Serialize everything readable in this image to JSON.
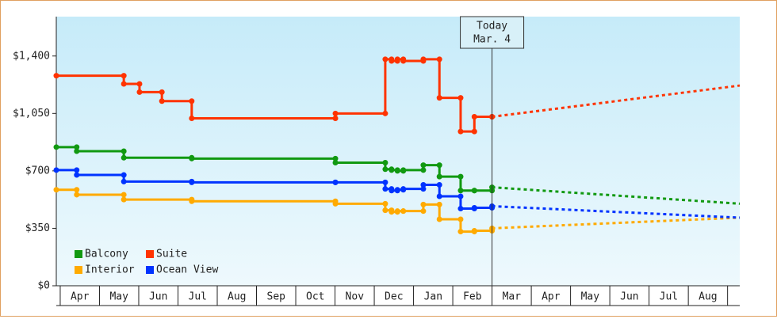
{
  "chart_data": {
    "type": "step-line",
    "xlim": [
      -0.1,
      17.31
    ],
    "ylim": [
      0,
      1640
    ],
    "yticks": [
      {
        "value": 0,
        "label": "$0"
      },
      {
        "value": 350,
        "label": "$350"
      },
      {
        "value": 700,
        "label": "$700"
      },
      {
        "value": 1050,
        "label": "$1,050"
      },
      {
        "value": 1400,
        "label": "$1,400"
      }
    ],
    "xticks": [
      {
        "value": 0,
        "label": "Apr"
      },
      {
        "value": 1,
        "label": "May"
      },
      {
        "value": 2,
        "label": "Jun"
      },
      {
        "value": 3,
        "label": "Jul"
      },
      {
        "value": 4,
        "label": "Aug"
      },
      {
        "value": 5,
        "label": "Sep"
      },
      {
        "value": 6,
        "label": "Oct"
      },
      {
        "value": 7,
        "label": "Nov"
      },
      {
        "value": 8,
        "label": "Dec"
      },
      {
        "value": 9,
        "label": "Jan"
      },
      {
        "value": 10,
        "label": "Feb"
      },
      {
        "value": 11,
        "label": "Mar"
      },
      {
        "value": 12,
        "label": "Apr"
      },
      {
        "value": 13,
        "label": "May"
      },
      {
        "value": 14,
        "label": "Jun"
      },
      {
        "value": 15,
        "label": "Jul"
      },
      {
        "value": 16,
        "label": "Aug"
      }
    ],
    "annotation": {
      "x": 11.0,
      "lines": [
        "Today",
        "Mar. 4"
      ]
    },
    "legend": "bottom-left",
    "series": [
      {
        "name": "Balcony",
        "color": "#119911",
        "x": [
          -0.1,
          0.42,
          1.62,
          3.35,
          7.01,
          8.28,
          8.44,
          8.59,
          8.74,
          9.25,
          9.66,
          10.2,
          10.55,
          11.0
        ],
        "values": [
          845,
          820,
          780,
          775,
          750,
          710,
          705,
          700,
          705,
          735,
          665,
          580,
          580,
          600
        ],
        "forecast_x": [
          11.0,
          17.31
        ],
        "forecast_values": [
          600,
          500
        ]
      },
      {
        "name": "Suite",
        "color": "#ff3300",
        "x": [
          -0.1,
          1.62,
          2.02,
          2.59,
          3.35,
          7.01,
          8.28,
          8.44,
          8.59,
          8.74,
          9.25,
          9.66,
          10.2,
          10.55,
          11.0
        ],
        "values": [
          1280,
          1230,
          1180,
          1125,
          1020,
          1050,
          1380,
          1370,
          1380,
          1370,
          1380,
          1145,
          940,
          1030,
          1030
        ],
        "forecast_x": [
          11.0,
          17.31
        ],
        "forecast_values": [
          1030,
          1220
        ]
      },
      {
        "name": "Interior",
        "color": "#ffaa00",
        "x": [
          -0.1,
          0.42,
          1.62,
          3.35,
          7.01,
          8.28,
          8.44,
          8.59,
          8.74,
          9.25,
          9.66,
          10.2,
          10.55,
          11.0
        ],
        "values": [
          585,
          555,
          525,
          515,
          500,
          460,
          450,
          455,
          455,
          495,
          405,
          330,
          335,
          350
        ],
        "forecast_x": [
          11.0,
          17.31
        ],
        "forecast_values": [
          350,
          415
        ]
      },
      {
        "name": "Ocean View",
        "color": "#0033ff",
        "x": [
          -0.1,
          0.42,
          1.62,
          3.35,
          7.01,
          8.28,
          8.44,
          8.59,
          8.74,
          9.25,
          9.66,
          10.2,
          10.55,
          11.0
        ],
        "values": [
          705,
          675,
          635,
          630,
          630,
          590,
          580,
          585,
          590,
          615,
          545,
          470,
          475,
          485
        ],
        "forecast_x": [
          11.0,
          17.31
        ],
        "forecast_values": [
          485,
          415
        ]
      }
    ]
  }
}
